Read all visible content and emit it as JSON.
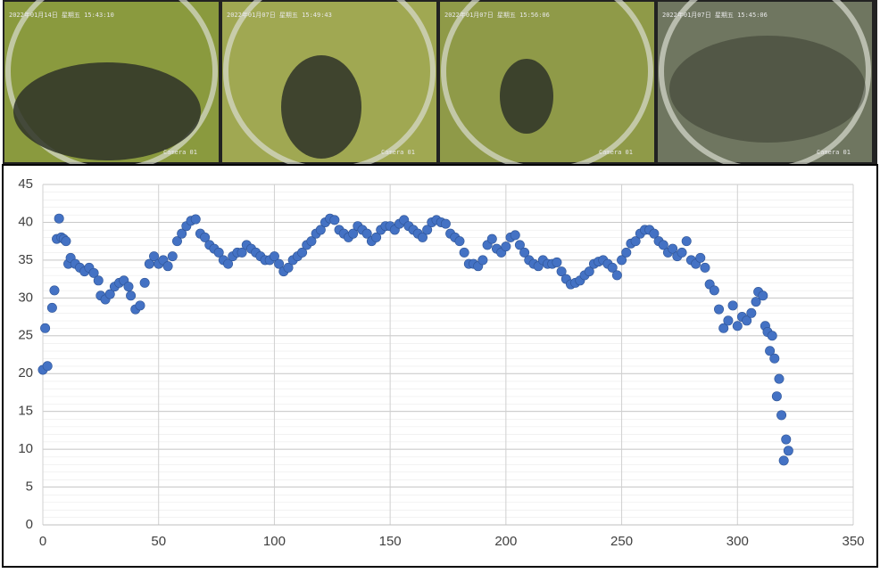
{
  "photos": [
    {
      "timestamp": "2022年01月14日 星期五 15:43:10",
      "camera": "Camera 01"
    },
    {
      "timestamp": "2022年01月07日 星期五 15:49:43",
      "camera": "Camera 01"
    },
    {
      "timestamp": "2022年01月07日 星期五 15:56:06",
      "camera": "Camera 01"
    },
    {
      "timestamp": "2022年01月07日 星期五 15:45:06",
      "camera": "Camera 01"
    }
  ],
  "chart_data": {
    "type": "scatter",
    "color": "#4472c4",
    "grid": true,
    "xlim": [
      0,
      350
    ],
    "xticks": [
      0,
      50,
      100,
      150,
      200,
      250,
      300,
      350
    ],
    "ylim": [
      0,
      45
    ],
    "yticks": [
      0,
      5,
      10,
      15,
      20,
      25,
      30,
      35,
      40,
      45
    ],
    "x": [
      0,
      1,
      2,
      4,
      5,
      6,
      7,
      8,
      9,
      10,
      11,
      12,
      14,
      16,
      18,
      20,
      22,
      24,
      25,
      27,
      29,
      31,
      33,
      35,
      37,
      38,
      40,
      42,
      44,
      46,
      48,
      50,
      52,
      54,
      56,
      58,
      60,
      62,
      64,
      66,
      68,
      70,
      72,
      74,
      76,
      78,
      80,
      82,
      84,
      86,
      88,
      90,
      92,
      94,
      96,
      98,
      100,
      102,
      104,
      106,
      108,
      110,
      112,
      114,
      116,
      118,
      120,
      122,
      124,
      126,
      128,
      130,
      132,
      134,
      136,
      138,
      140,
      142,
      144,
      146,
      148,
      150,
      152,
      154,
      156,
      158,
      160,
      162,
      164,
      166,
      168,
      170,
      172,
      174,
      176,
      178,
      180,
      182,
      184,
      186,
      188,
      190,
      192,
      194,
      196,
      198,
      200,
      202,
      204,
      206,
      208,
      210,
      212,
      214,
      216,
      218,
      220,
      222,
      224,
      226,
      228,
      230,
      232,
      234,
      236,
      238,
      240,
      242,
      244,
      246,
      248,
      250,
      252,
      254,
      256,
      258,
      260,
      262,
      264,
      266,
      268,
      270,
      272,
      274,
      276,
      278,
      280,
      282,
      284,
      286,
      288,
      290,
      292,
      294,
      296,
      298,
      300,
      302,
      304,
      306,
      308,
      309,
      311,
      312,
      313,
      314,
      315,
      316,
      317,
      318,
      319,
      320,
      321,
      322
    ],
    "y": [
      20.5,
      26,
      21,
      28.7,
      31,
      37.8,
      40.5,
      38,
      37.8,
      37.5,
      34.5,
      35.3,
      34.5,
      34,
      33.5,
      34,
      33.3,
      32.3,
      30.3,
      29.8,
      30.5,
      31.5,
      32,
      32.3,
      31.5,
      30.3,
      28.5,
      29,
      32,
      34.5,
      35.5,
      34.5,
      35,
      34.2,
      35.5,
      37.5,
      38.5,
      39.5,
      40.2,
      40.4,
      38.5,
      38,
      37,
      36.5,
      36,
      35,
      34.5,
      35.5,
      36,
      36,
      37,
      36.5,
      36,
      35.5,
      35,
      35,
      35.5,
      34.5,
      33.5,
      34,
      35,
      35.5,
      36,
      37,
      37.5,
      38.5,
      39,
      40,
      40.5,
      40.3,
      39,
      38.5,
      38,
      38.5,
      39.5,
      39,
      38.5,
      37.5,
      38,
      39,
      39.5,
      39.5,
      39,
      39.8,
      40.3,
      39.5,
      39,
      38.5,
      38,
      39,
      40,
      40.3,
      40,
      39.8,
      38.5,
      38,
      37.5,
      36,
      34.5,
      34.5,
      34.2,
      35,
      37,
      37.8,
      36.5,
      36,
      36.8,
      38,
      38.3,
      37,
      36,
      35,
      34.5,
      34.2,
      35,
      34.5,
      34.5,
      34.7,
      33.5,
      32.5,
      31.8,
      32,
      32.3,
      33,
      33.5,
      34.5,
      34.8,
      35,
      34.5,
      34,
      33,
      35,
      36,
      37.2,
      37.5,
      38.5,
      39,
      39,
      38.5,
      37.5,
      37,
      36,
      36.5,
      35.5,
      36,
      37.5,
      35,
      34.5,
      35.3,
      34,
      31.8,
      31,
      28.5,
      26,
      27,
      29,
      26.3,
      27.5,
      27,
      28,
      29.5,
      30.8,
      30.3,
      26.3,
      25.5,
      23,
      25,
      22,
      17,
      19.3,
      14.5,
      8.5,
      11.3,
      9.8
    ]
  }
}
